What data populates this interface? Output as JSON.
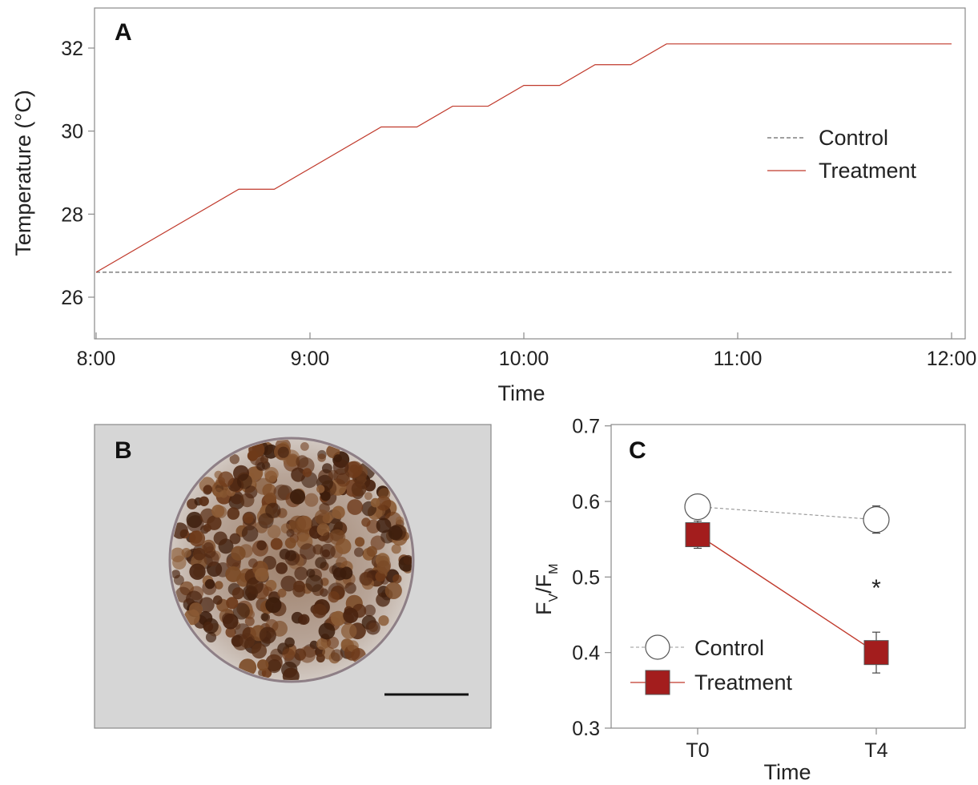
{
  "chart_data": [
    {
      "panel": "A",
      "type": "line",
      "xlabel": "Time",
      "ylabel": "Temperature (°C)",
      "x_tick_labels": [
        "8:00",
        "9:00",
        "10:00",
        "11:00",
        "12:00"
      ],
      "y_ticks": [
        26,
        28,
        30,
        32
      ],
      "xlim_hours": [
        8,
        12
      ],
      "ylim": [
        25,
        33
      ],
      "legend_position": "right",
      "series": [
        {
          "name": "Control",
          "style": "dashed",
          "color": "#666666",
          "points": [
            [
              8.0,
              26.6
            ],
            [
              12.0,
              26.6
            ]
          ]
        },
        {
          "name": "Treatment",
          "style": "solid",
          "color": "#c0392b",
          "points": [
            [
              8.0,
              26.6
            ],
            [
              8.667,
              28.6
            ],
            [
              8.833,
              28.6
            ],
            [
              9.333,
              30.1
            ],
            [
              9.5,
              30.1
            ],
            [
              9.667,
              30.6
            ],
            [
              9.833,
              30.6
            ],
            [
              10.0,
              31.1
            ],
            [
              10.167,
              31.1
            ],
            [
              10.333,
              31.6
            ],
            [
              10.5,
              31.6
            ],
            [
              10.667,
              32.1
            ],
            [
              12.0,
              32.1
            ]
          ]
        }
      ]
    },
    {
      "panel": "C",
      "type": "line",
      "xlabel": "Time",
      "ylabel_main": "F",
      "ylabel_sub1": "V",
      "ylabel_mid": "/F",
      "ylabel_sub2": "M",
      "categories": [
        "T0",
        "T4"
      ],
      "y_ticks": [
        "0.3",
        "0.4",
        "0.5",
        "0.6",
        "0.7"
      ],
      "ylim": [
        0.3,
        0.7
      ],
      "legend_position": "bottom-left",
      "annotation": "*",
      "series": [
        {
          "name": "Control",
          "marker": "circle",
          "color": "#888888",
          "values": [
            0.593,
            0.576
          ],
          "errors": [
            0.014,
            0.018
          ]
        },
        {
          "name": "Treatment",
          "marker": "square",
          "color": "#a31d1d",
          "values": [
            0.556,
            0.4
          ],
          "errors": [
            0.018,
            0.027
          ]
        }
      ]
    }
  ],
  "panels": {
    "a": "A",
    "b": "B",
    "c": "C"
  },
  "colors": {
    "treatment_line": "#c0392b",
    "treatment_fill": "#a31d1d",
    "control_line": "#666666",
    "axes": "#888888"
  }
}
